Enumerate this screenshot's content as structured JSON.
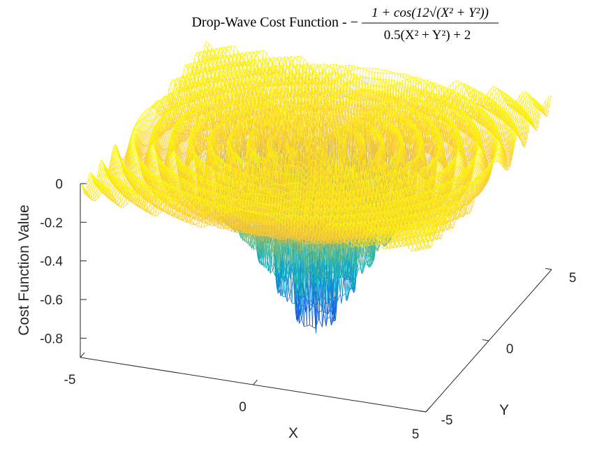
{
  "chart_data": {
    "type": "mesh",
    "title": {
      "prefix": "Drop-Wave Cost Function - −",
      "numerator": "1 + cos(12√(X² + Y²))",
      "denominator": "0.5(X² + Y²) + 2"
    },
    "function": "-(1 + cos(12*sqrt(X^2+Y^2))) / (0.5*(X^2+Y^2) + 2)",
    "xlabel": "X",
    "ylabel": "Y",
    "zlabel": "Cost Function Value",
    "xlim": [
      -5,
      5
    ],
    "ylim": [
      -5,
      5
    ],
    "zlim": [
      -0.9,
      0
    ],
    "xticks": [
      -5,
      0,
      5
    ],
    "yticks": [
      -5,
      0,
      5
    ],
    "zticks": [
      0,
      -0.2,
      -0.4,
      -0.6,
      -0.8
    ],
    "xtick_labels": [
      "-5",
      "0",
      "5"
    ],
    "ytick_labels": [
      "-5",
      "0",
      "5"
    ],
    "ztick_labels": [
      "0",
      "-0.2",
      "-0.4",
      "-0.6",
      "-0.8"
    ],
    "z_min_value": -1,
    "colormap": "parula",
    "colormap_stops": [
      "#352a87",
      "#0f5cdd",
      "#1481d6",
      "#06a4ca",
      "#2eb7a4",
      "#87bf77",
      "#d1bb59",
      "#fec832",
      "#f9fb0e"
    ],
    "grid": false
  }
}
